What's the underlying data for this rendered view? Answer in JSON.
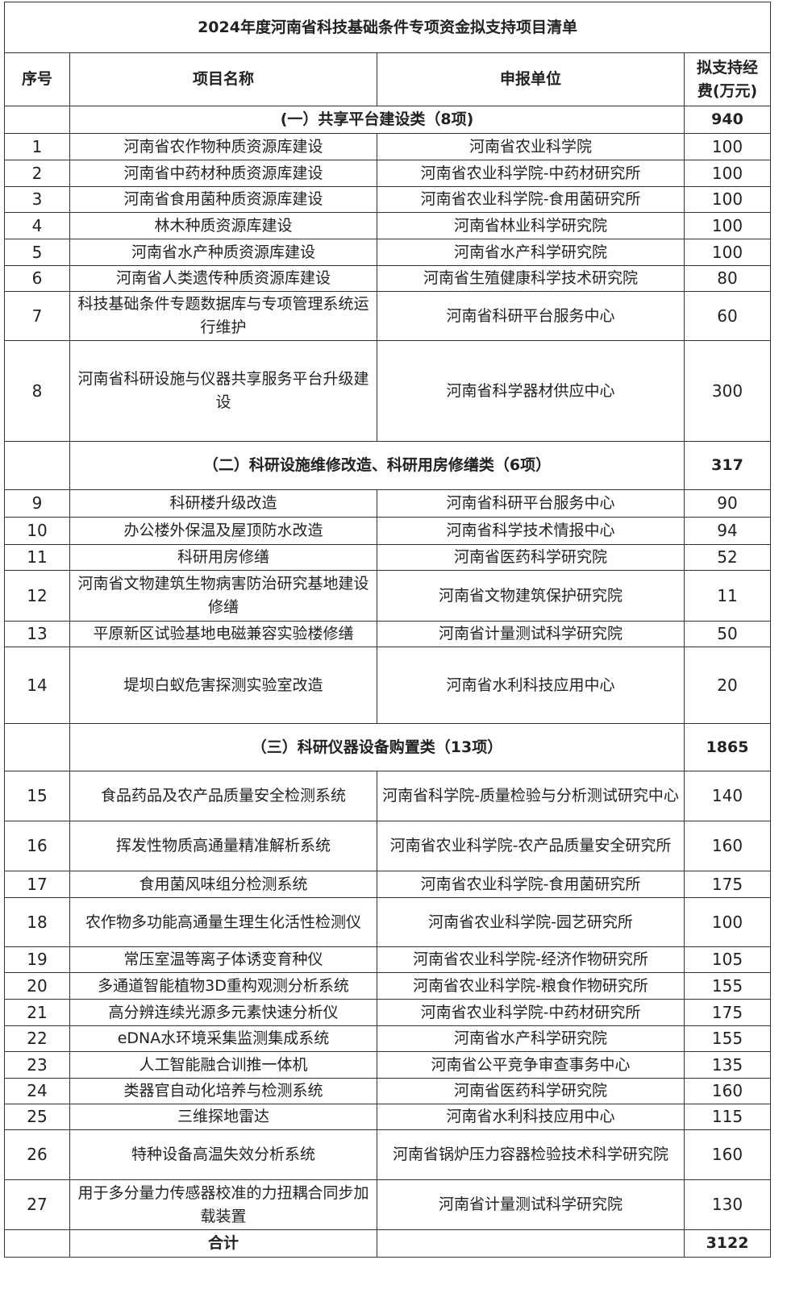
{
  "title": "2024年度河南省科技基础条件专项资金拟支持项目清单",
  "headers": {
    "no": "序号",
    "name": "项目名称",
    "unit": "申报单位",
    "fund": "拟支持经费(万元)"
  },
  "sections": [
    {
      "title": "(一）共享平台建设类（8项)",
      "total": "940",
      "rows": [
        {
          "no": "1",
          "name": "河南省农作物种质资源库建设",
          "unit": "河南省农业科学院",
          "fund": "100"
        },
        {
          "no": "2",
          "name": "河南省中药材种质资源库建设",
          "unit": "河南省农业科学院-中药材研究所",
          "fund": "100"
        },
        {
          "no": "3",
          "name": "河南省食用菌种质资源库建设",
          "unit": "河南省农业科学院-食用菌研究所",
          "fund": "100"
        },
        {
          "no": "4",
          "name": "林木种质资源库建设",
          "unit": "河南省林业科学研究院",
          "fund": "100"
        },
        {
          "no": "5",
          "name": "河南省水产种质资源库建设",
          "unit": "河南省水产科学研究院",
          "fund": "100"
        },
        {
          "no": "6",
          "name": "河南省人类遗传种质资源库建设",
          "unit": "河南省生殖健康科学技术研究院",
          "fund": "80"
        },
        {
          "no": "7",
          "name": "科技基础条件专题数据库与专项管理系统运行维护",
          "unit": "河南省科研平台服务中心",
          "fund": "60"
        },
        {
          "no": "8",
          "name": "河南省科研设施与仪器共享服务平台升级建设",
          "unit": "河南省科学器材供应中心",
          "fund": "300"
        }
      ]
    },
    {
      "title": "（二）科研设施维修改造、科研用房修缮类（6项）",
      "total": "317",
      "rows": [
        {
          "no": "9",
          "name": "科研楼升级改造",
          "unit": "河南省科研平台服务中心",
          "fund": "90"
        },
        {
          "no": "10",
          "name": "办公楼外保温及屋顶防水改造",
          "unit": "河南省科学技术情报中心",
          "fund": "94"
        },
        {
          "no": "11",
          "name": "科研用房修缮",
          "unit": "河南省医药科学研究院",
          "fund": "52"
        },
        {
          "no": "12",
          "name": "河南省文物建筑生物病害防治研究基地建设修缮",
          "unit": "河南省文物建筑保护研究院",
          "fund": "11"
        },
        {
          "no": "13",
          "name": "平原新区试验基地电磁兼容实验楼修缮",
          "unit": "河南省计量测试科学研究院",
          "fund": "50"
        },
        {
          "no": "14",
          "name": "堤坝白蚁危害探测实验室改造",
          "unit": "河南省水利科技应用中心",
          "fund": "20"
        }
      ]
    },
    {
      "title": "（三）科研仪器设备购置类（13项）",
      "total": "1865",
      "rows": [
        {
          "no": "15",
          "name": "食品药品及农产品质量安全检测系统",
          "unit": "河南省科学院-质量检验与分析测试研究中心",
          "fund": "140"
        },
        {
          "no": "16",
          "name": "挥发性物质高通量精准解析系统",
          "unit": "河南省农业科学院-农产品质量安全研究所",
          "fund": "160"
        },
        {
          "no": "17",
          "name": "食用菌风味组分检测系统",
          "unit": "河南省农业科学院-食用菌研究所",
          "fund": "175"
        },
        {
          "no": "18",
          "name": "农作物多功能高通量生理生化活性检测仪",
          "unit": "河南省农业科学院-园艺研究所",
          "fund": "100"
        },
        {
          "no": "19",
          "name": "常压室温等离子体诱变育种仪",
          "unit": "河南省农业科学院-经济作物研究所",
          "fund": "105"
        },
        {
          "no": "20",
          "name": "多通道智能植物3D重构观测分析系统",
          "unit": "河南省农业科学院-粮食作物研究所",
          "fund": "155"
        },
        {
          "no": "21",
          "name": "高分辨连续光源多元素快速分析仪",
          "unit": "河南省农业科学院-中药材研究所",
          "fund": "175"
        },
        {
          "no": "22",
          "name": "eDNA水环境采集监测集成系统",
          "unit": "河南省水产科学研究院",
          "fund": "155"
        },
        {
          "no": "23",
          "name": "人工智能融合训推一体机",
          "unit": "河南省公平竞争审查事务中心",
          "fund": "135"
        },
        {
          "no": "24",
          "name": "类器官自动化培养与检测系统",
          "unit": "河南省医药科学研究院",
          "fund": "160"
        },
        {
          "no": "25",
          "name": "三维探地雷达",
          "unit": "河南省水利科技应用中心",
          "fund": "115"
        },
        {
          "no": "26",
          "name": "特种设备高温失效分析系统",
          "unit": "河南省锅炉压力容器检验技术科学研究院",
          "fund": "160"
        },
        {
          "no": "27",
          "name": "用于多分量力传感器校准的力扭耦合同步加载装置",
          "unit": "河南省计量测试科学研究院",
          "fund": "130"
        }
      ]
    }
  ],
  "total": {
    "label": "合计",
    "value": "3122"
  }
}
